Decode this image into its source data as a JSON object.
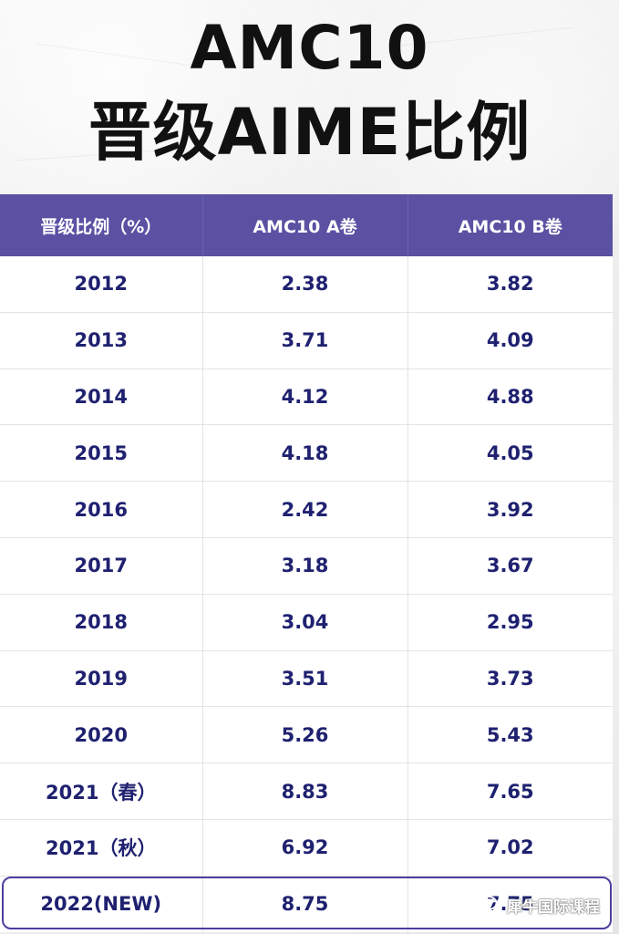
{
  "title_line1": "AMC10",
  "title_line2": "晋级AIME比例",
  "table": {
    "headers": [
      "晋级比例（%）",
      "AMC10 A卷",
      "AMC10 B卷"
    ],
    "rows": [
      {
        "year": "2012",
        "a": "2.38",
        "b": "3.82"
      },
      {
        "year": "2013",
        "a": "3.71",
        "b": "4.09"
      },
      {
        "year": "2014",
        "a": "4.12",
        "b": "4.88"
      },
      {
        "year": "2015",
        "a": "4.18",
        "b": "4.05"
      },
      {
        "year": "2016",
        "a": "2.42",
        "b": "3.92"
      },
      {
        "year": "2017",
        "a": "3.18",
        "b": "3.67"
      },
      {
        "year": "2018",
        "a": "3.04",
        "b": "2.95"
      },
      {
        "year": "2019",
        "a": "3.51",
        "b": "3.73"
      },
      {
        "year": "2020",
        "a": "5.26",
        "b": "5.43"
      },
      {
        "year": "2021（春）",
        "a": "8.83",
        "b": "7.65"
      },
      {
        "year": "2021（秋）",
        "a": "6.92",
        "b": "7.02"
      },
      {
        "year": "2022(NEW)",
        "a": "8.75",
        "b": "7.75"
      }
    ]
  },
  "watermark": {
    "text": "犀牛国际课程",
    "icon": "wechat-icon"
  },
  "colors": {
    "header_bg": "#5a51a3",
    "header_text": "#ffffff",
    "cell_text": "#1f2170",
    "title_text": "#111111",
    "highlight_border": "#4a3fa0"
  },
  "chart_data": {
    "type": "table",
    "title": "AMC10 晋级AIME比例",
    "columns": [
      "晋级比例（%）",
      "AMC10 A卷",
      "AMC10 B卷"
    ],
    "categories": [
      "2012",
      "2013",
      "2014",
      "2015",
      "2016",
      "2017",
      "2018",
      "2019",
      "2020",
      "2021（春）",
      "2021（秋）",
      "2022(NEW)"
    ],
    "series": [
      {
        "name": "AMC10 A卷",
        "values": [
          2.38,
          3.71,
          4.12,
          4.18,
          2.42,
          3.18,
          3.04,
          3.51,
          5.26,
          8.83,
          6.92,
          8.75
        ]
      },
      {
        "name": "AMC10 B卷",
        "values": [
          3.82,
          4.09,
          4.88,
          4.05,
          3.92,
          3.67,
          2.95,
          3.73,
          5.43,
          7.65,
          7.02,
          7.75
        ]
      }
    ],
    "highlighted_row": "2022(NEW)"
  }
}
